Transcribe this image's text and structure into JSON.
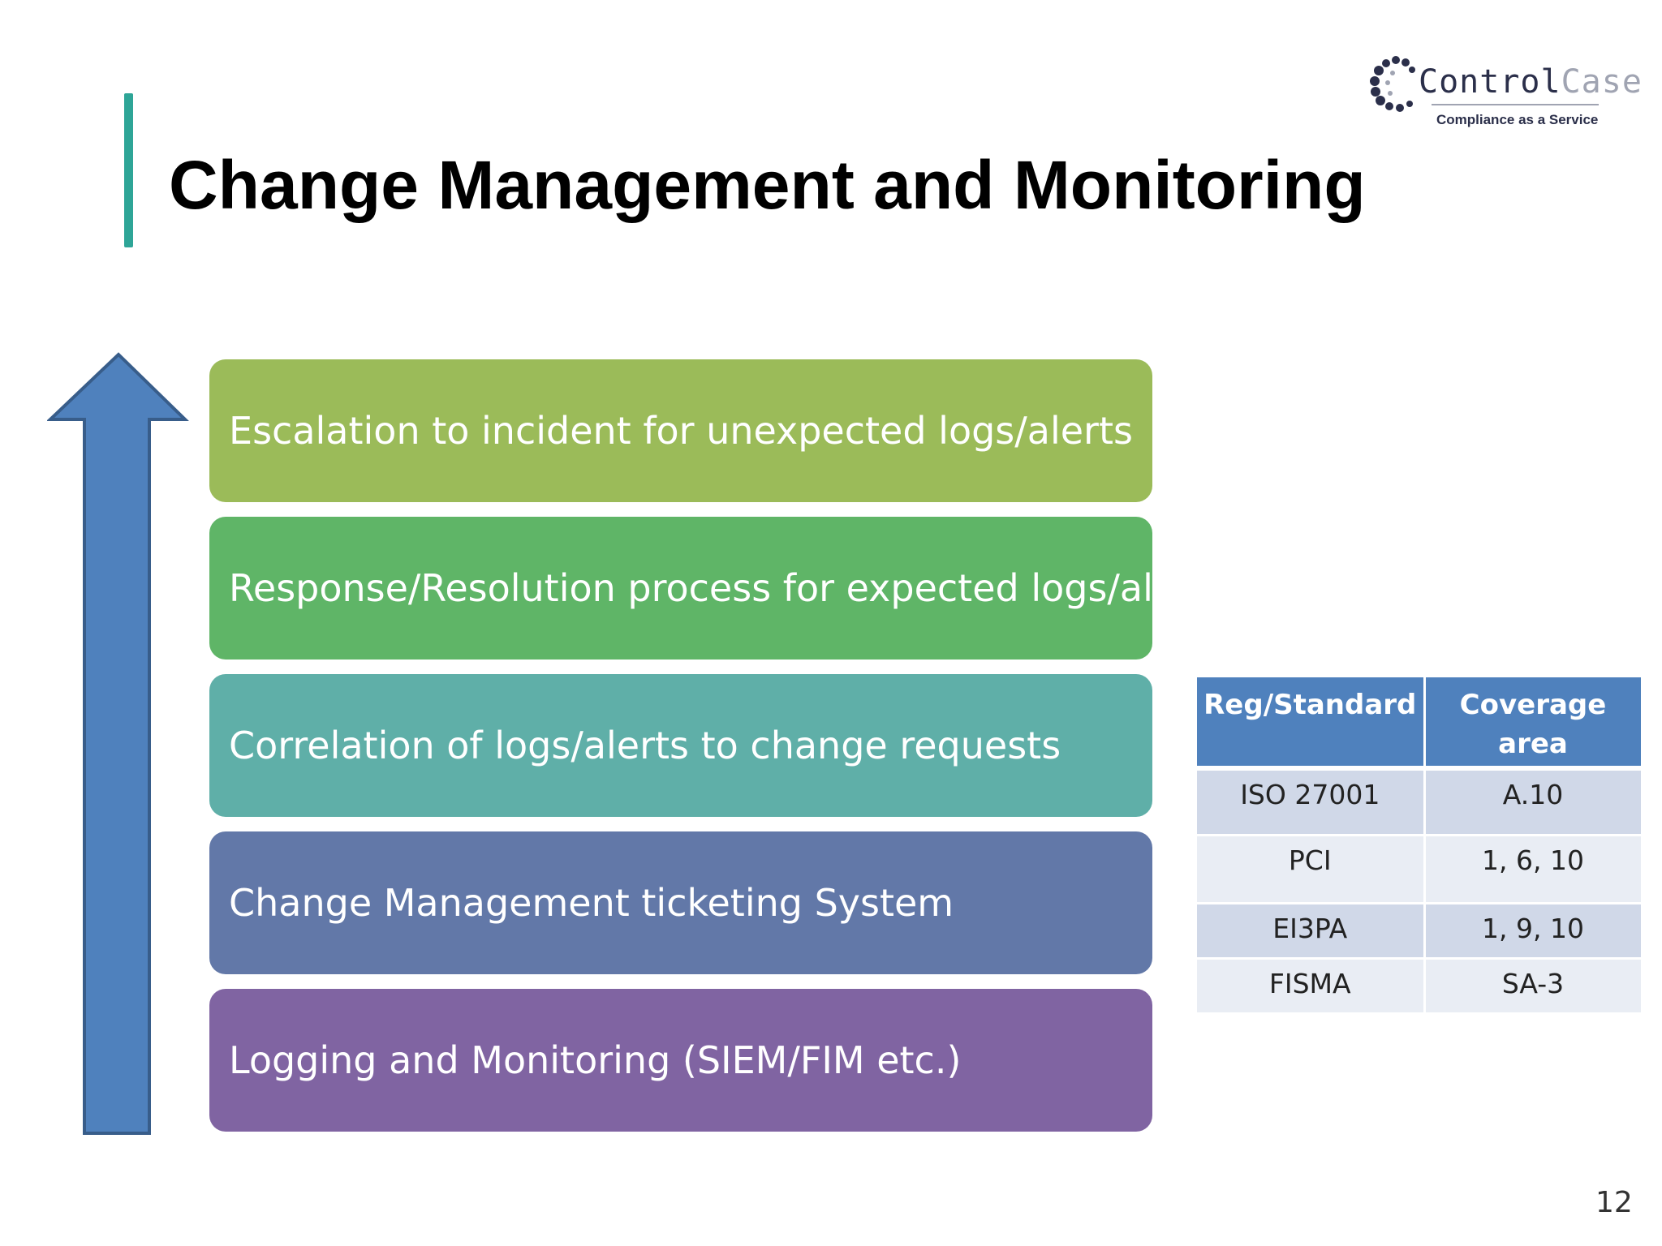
{
  "title": "Change Management and Monitoring",
  "logo": {
    "word_control": "Control",
    "word_case": "Case",
    "tagline": "Compliance as a Service"
  },
  "arrow": {
    "color": "#4f81bd",
    "direction": "up"
  },
  "layers": [
    {
      "label": "Escalation to incident for unexpected logs/alerts",
      "color": "#9bbb59"
    },
    {
      "label": "Response/Resolution process for expected logs/alerts",
      "color": "#5fb567"
    },
    {
      "label": "Correlation of logs/alerts to change requests",
      "color": "#5fafa8"
    },
    {
      "label": "Change Management ticketing System",
      "color": "#6278a8"
    },
    {
      "label": "Logging and Monitoring (SIEM/FIM etc.)",
      "color": "#8064a2"
    }
  ],
  "table": {
    "headers": [
      "Reg/Standard",
      "Coverage area"
    ],
    "rows": [
      [
        "ISO 27001",
        "A.10"
      ],
      [
        "PCI",
        "1, 6, 10"
      ],
      [
        "EI3PA",
        "1, 9, 10"
      ],
      [
        "FISMA",
        "SA-3"
      ]
    ]
  },
  "page_number": "12"
}
